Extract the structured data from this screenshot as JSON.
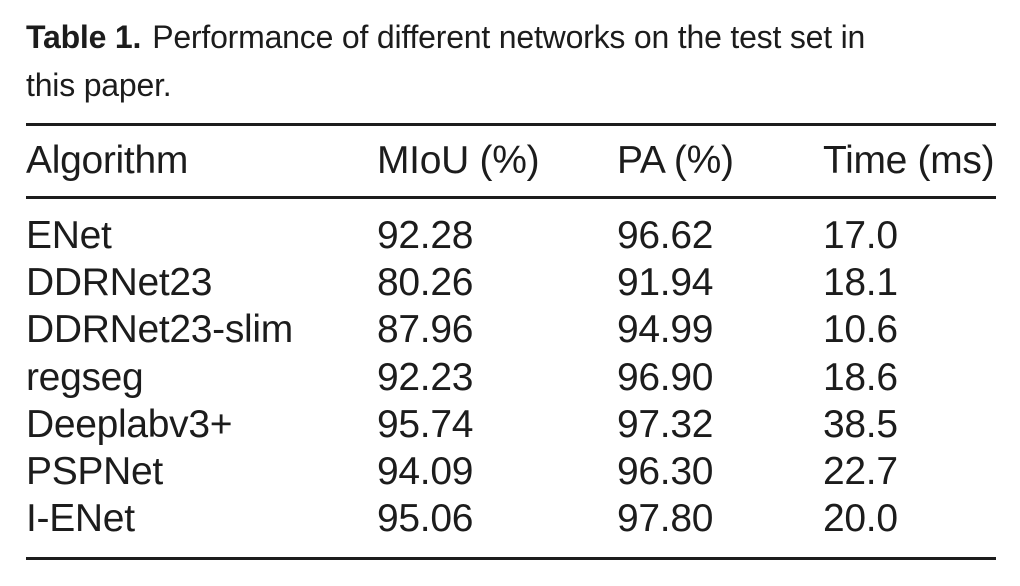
{
  "caption": {
    "label": "Table 1.",
    "line1": "Performance of different networks on the test set in",
    "line2": "this paper."
  },
  "table": {
    "headers": [
      "Algorithm",
      "MIoU (%)",
      "PA (%)",
      "Time (ms)"
    ],
    "rows": [
      {
        "algorithm": "ENet",
        "miou": "92.28",
        "pa": "96.62",
        "time": "17.0"
      },
      {
        "algorithm": "DDRNet23",
        "miou": "80.26",
        "pa": "91.94",
        "time": "18.1"
      },
      {
        "algorithm": "DDRNet23-slim",
        "miou": "87.96",
        "pa": "94.99",
        "time": "10.6"
      },
      {
        "algorithm": "regseg",
        "miou": "92.23",
        "pa": "96.90",
        "time": "18.6"
      },
      {
        "algorithm": "Deeplabv3+",
        "miou": "95.74",
        "pa": "97.32",
        "time": "38.5"
      },
      {
        "algorithm": "PSPNet",
        "miou": "94.09",
        "pa": "96.30",
        "time": "22.7"
      },
      {
        "algorithm": "I-ENet",
        "miou": "95.06",
        "pa": "97.80",
        "time": "20.0"
      }
    ]
  },
  "chart_data": {
    "type": "table",
    "title": "Table 1. Performance of different networks on the test set in this paper.",
    "columns": [
      "Algorithm",
      "MIoU (%)",
      "PA (%)",
      "Time (ms)"
    ],
    "rows": [
      [
        "ENet",
        92.28,
        96.62,
        17.0
      ],
      [
        "DDRNet23",
        80.26,
        91.94,
        18.1
      ],
      [
        "DDRNet23-slim",
        87.96,
        94.99,
        10.6
      ],
      [
        "regseg",
        92.23,
        96.9,
        18.6
      ],
      [
        "Deeplabv3+",
        95.74,
        97.32,
        38.5
      ],
      [
        "PSPNet",
        94.09,
        96.3,
        22.7
      ],
      [
        "I-ENet",
        95.06,
        97.8,
        20.0
      ]
    ]
  },
  "colors": {
    "text": "#1c1c1c",
    "rule": "#1c1c1c",
    "background": "#ffffff"
  }
}
